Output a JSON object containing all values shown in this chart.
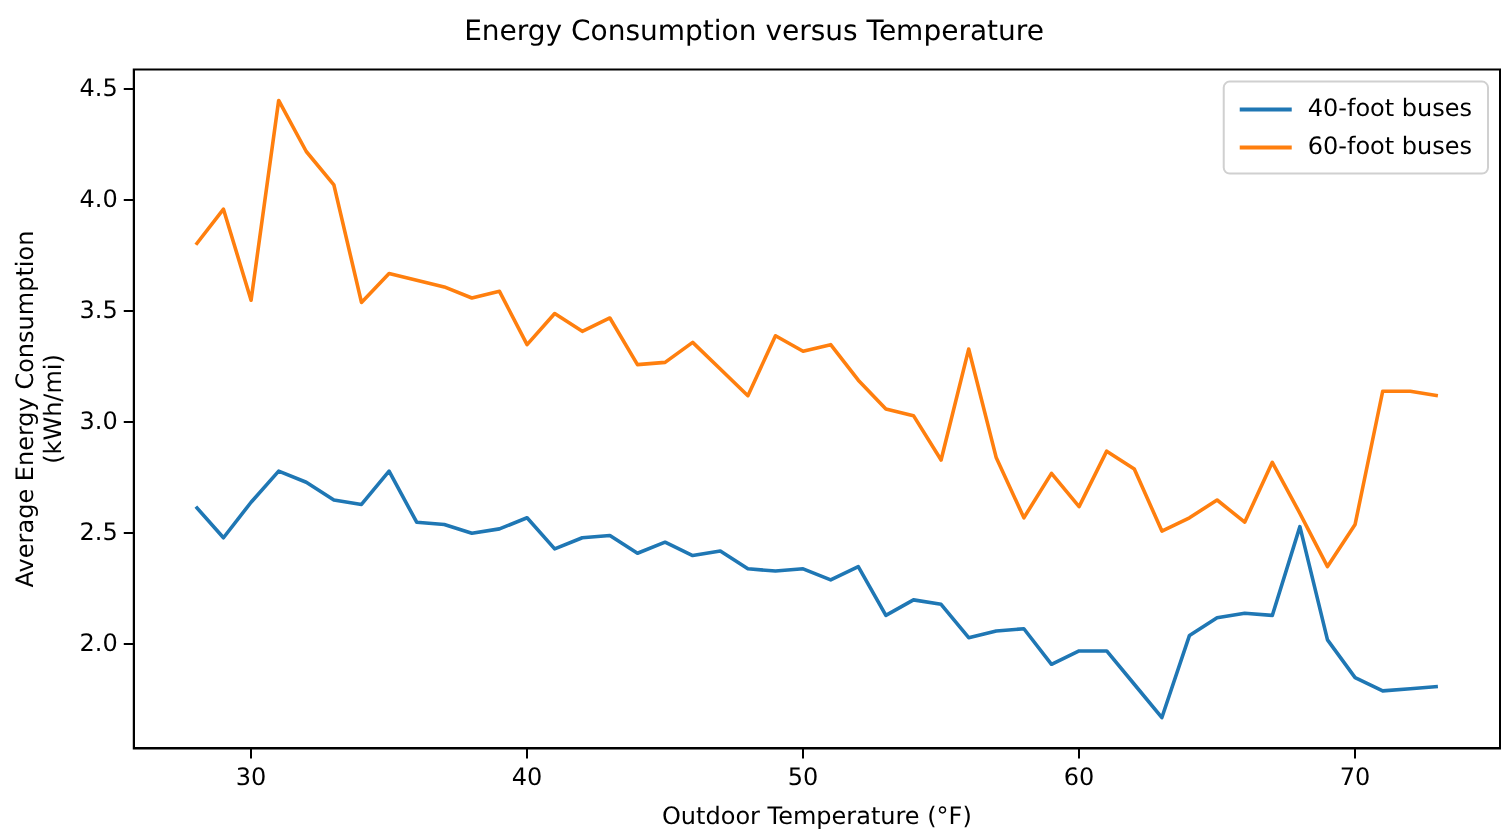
{
  "chart_data": {
    "type": "line",
    "title": "Energy Consumption versus Temperature",
    "xlabel": "Outdoor Temperature (°F)",
    "ylabel": "Average Energy Consumption\n(kWh/mi)",
    "x": [
      28,
      29,
      30,
      31,
      32,
      33,
      34,
      35,
      36,
      37,
      38,
      39,
      40,
      41,
      42,
      43,
      44,
      45,
      46,
      47,
      48,
      49,
      50,
      51,
      52,
      53,
      54,
      55,
      56,
      57,
      58,
      59,
      60,
      61,
      62,
      63,
      64,
      65,
      66,
      67,
      68,
      69,
      70,
      71,
      72,
      73
    ],
    "series": [
      {
        "name": "40-foot buses",
        "color": "#1f77b4",
        "values": [
          2.62,
          2.48,
          2.64,
          2.78,
          2.73,
          2.65,
          2.63,
          2.78,
          2.55,
          2.54,
          2.5,
          2.52,
          2.57,
          2.43,
          2.48,
          2.49,
          2.41,
          2.46,
          2.4,
          2.42,
          2.34,
          2.33,
          2.34,
          2.29,
          2.35,
          2.13,
          2.2,
          2.18,
          2.03,
          2.06,
          2.07,
          1.91,
          1.97,
          1.97,
          1.82,
          1.67,
          2.04,
          2.12,
          2.14,
          2.13,
          2.53,
          2.02,
          1.85,
          1.79,
          1.8,
          1.81
        ]
      },
      {
        "name": "60-foot buses",
        "color": "#ff7f0e",
        "values": [
          3.8,
          3.96,
          3.55,
          4.45,
          4.22,
          4.07,
          3.54,
          3.67,
          3.64,
          3.61,
          3.56,
          3.59,
          3.35,
          3.49,
          3.41,
          3.47,
          3.26,
          3.27,
          3.36,
          3.24,
          3.12,
          3.39,
          3.32,
          3.35,
          3.19,
          3.06,
          3.03,
          2.83,
          3.33,
          2.84,
          2.57,
          2.77,
          2.62,
          2.87,
          2.79,
          2.51,
          2.57,
          2.65,
          2.55,
          2.82,
          2.59,
          2.35,
          2.54,
          3.14,
          3.14,
          3.12
        ]
      }
    ],
    "xlim": [
      25.75,
      75.25
    ],
    "xticks": [
      30,
      40,
      50,
      60,
      70
    ],
    "ylim": [
      1.531,
      4.589
    ],
    "yticks": [
      {
        "value": 2,
        "label": "2.0"
      },
      2.5,
      {
        "value": 3,
        "label": "3.0"
      },
      3.5,
      {
        "value": 4,
        "label": "4.0"
      },
      4.5
    ],
    "grid": false,
    "legend": "top right",
    "marker": "none",
    "line_style": "solid"
  }
}
